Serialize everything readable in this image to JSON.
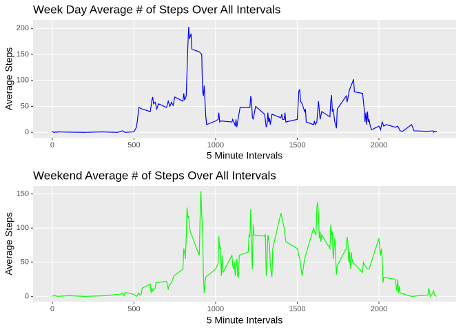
{
  "chart_data": [
    {
      "type": "line",
      "title": "Week Day Average # of Steps Over All Intervals",
      "x_label": "5 Minute Intervals",
      "y_label": "Average Steps",
      "color": "#0000ff",
      "x": [
        0,
        5,
        10,
        15,
        20,
        25,
        30,
        100,
        200,
        300,
        400,
        430,
        445,
        500,
        515,
        520,
        530,
        550,
        600,
        610,
        615,
        620,
        630,
        640,
        650,
        700,
        710,
        720,
        730,
        740,
        750,
        800,
        805,
        810,
        820,
        830,
        835,
        840,
        850,
        855,
        900,
        915,
        920,
        925,
        930,
        935,
        940,
        945,
        1000,
        1015,
        1020,
        1025,
        1030,
        1100,
        1105,
        1110,
        1115,
        1120,
        1125,
        1130,
        1140,
        1150,
        1200,
        1210,
        1215,
        1220,
        1225,
        1230,
        1245,
        1300,
        1310,
        1315,
        1320,
        1325,
        1330,
        1335,
        1340,
        1345,
        1400,
        1405,
        1410,
        1420,
        1425,
        1430,
        1500,
        1510,
        1515,
        1520,
        1530,
        1545,
        1550,
        1555,
        1600,
        1605,
        1610,
        1620,
        1630,
        1640,
        1650,
        1700,
        1705,
        1710,
        1715,
        1720,
        1730,
        1735,
        1740,
        1745,
        1800,
        1805,
        1820,
        1845,
        1850,
        1900,
        1905,
        1910,
        1915,
        1920,
        1925,
        1930,
        1935,
        1940,
        1945,
        1955,
        2000,
        2010,
        2020,
        2030,
        2045,
        2100,
        2115,
        2130,
        2145,
        2200,
        2215,
        2300,
        2330,
        2335,
        2340,
        2355
      ],
      "values": [
        2,
        0.5,
        0,
        0,
        1,
        0,
        1,
        0.5,
        0,
        1,
        0,
        3,
        0,
        1,
        10,
        20,
        48,
        45,
        40,
        62,
        68,
        55,
        58,
        45,
        55,
        48,
        60,
        50,
        58,
        52,
        68,
        60,
        75,
        62,
        70,
        165,
        203,
        180,
        190,
        160,
        155,
        150,
        80,
        70,
        90,
        60,
        30,
        15,
        22,
        25,
        38,
        20,
        22,
        20,
        25,
        20,
        18,
        12,
        25,
        10,
        30,
        48,
        48,
        48,
        70,
        60,
        30,
        25,
        50,
        35,
        10,
        15,
        38,
        20,
        28,
        15,
        25,
        35,
        28,
        35,
        25,
        25,
        38,
        20,
        25,
        80,
        82,
        60,
        55,
        40,
        45,
        20,
        15,
        22,
        15,
        20,
        60,
        25,
        40,
        30,
        60,
        72,
        40,
        45,
        20,
        15,
        8,
        45,
        70,
        58,
        82,
        102,
        78,
        75,
        60,
        45,
        20,
        38,
        15,
        40,
        20,
        25,
        15,
        5,
        12,
        5,
        20,
        12,
        15,
        10,
        12,
        3,
        2,
        15,
        3,
        2,
        3,
        0,
        2,
        1
      ],
      "xlim": [
        -117.75,
        2472.75
      ],
      "xticks": [
        0,
        500,
        1000,
        1500,
        2000
      ],
      "ylim": [
        -10.3,
        216.3
      ],
      "yticks": [
        0,
        50,
        100,
        150,
        200
      ],
      "grid": true
    },
    {
      "type": "line",
      "title": "Weekend Average # of Steps Over All Intervals",
      "x_label": "5 Minute Intervals",
      "y_label": "Average Steps",
      "color": "#00ff00",
      "x": [
        0,
        15,
        30,
        100,
        200,
        330,
        400,
        410,
        430,
        440,
        445,
        500,
        515,
        530,
        535,
        545,
        550,
        600,
        605,
        610,
        615,
        630,
        635,
        700,
        710,
        715,
        730,
        745,
        800,
        805,
        810,
        815,
        820,
        825,
        830,
        835,
        840,
        845,
        900,
        905,
        910,
        915,
        920,
        925,
        930,
        935,
        940,
        1000,
        1015,
        1020,
        1025,
        1030,
        1035,
        1040,
        1045,
        1100,
        1105,
        1110,
        1115,
        1120,
        1130,
        1135,
        1140,
        1145,
        1200,
        1205,
        1210,
        1215,
        1220,
        1225,
        1230,
        1235,
        1300,
        1305,
        1310,
        1315,
        1320,
        1330,
        1335,
        1345,
        1350,
        1400,
        1420,
        1430,
        1500,
        1515,
        1530,
        1545,
        1600,
        1605,
        1615,
        1620,
        1625,
        1630,
        1635,
        1640,
        1645,
        1650,
        1700,
        1705,
        1710,
        1715,
        1720,
        1730,
        1740,
        1745,
        1800,
        1805,
        1810,
        1815,
        1820,
        1825,
        1830,
        1835,
        1840,
        1900,
        1905,
        1915,
        1930,
        1940,
        2000,
        2005,
        2010,
        2015,
        2020,
        2025,
        2030,
        2100,
        2110,
        2115,
        2120,
        2125,
        2130,
        2200,
        2300,
        2305,
        2315,
        2330,
        2335,
        2340,
        2355
      ],
      "values": [
        0,
        2,
        0,
        1,
        0,
        1,
        3,
        2,
        5,
        1,
        6,
        3,
        0,
        5,
        2,
        3,
        12,
        18,
        5,
        12,
        8,
        12,
        20,
        22,
        10,
        16,
        20,
        30,
        40,
        70,
        65,
        55,
        85,
        130,
        115,
        118,
        100,
        95,
        60,
        115,
        154,
        120,
        100,
        35,
        5,
        20,
        28,
        40,
        48,
        88,
        70,
        72,
        30,
        60,
        35,
        60,
        45,
        40,
        50,
        30,
        55,
        30,
        28,
        60,
        65,
        90,
        88,
        128,
        70,
        40,
        105,
        90,
        88,
        90,
        30,
        50,
        90,
        75,
        45,
        28,
        70,
        122,
        100,
        80,
        70,
        55,
        30,
        55,
        100,
        95,
        90,
        130,
        138,
        120,
        85,
        95,
        80,
        90,
        70,
        105,
        90,
        95,
        55,
        85,
        32,
        45,
        70,
        87,
        80,
        50,
        65,
        40,
        65,
        55,
        50,
        35,
        50,
        45,
        40,
        40,
        85,
        70,
        60,
        70,
        55,
        20,
        28,
        25,
        8,
        25,
        5,
        15,
        5,
        0,
        2,
        12,
        0,
        5,
        8,
        2,
        0
      ],
      "xlim": [
        -117.75,
        2472.75
      ],
      "xticks": [
        0,
        500,
        1000,
        1500,
        2000
      ],
      "ylim": [
        -7.7,
        161.7
      ],
      "yticks": [
        0,
        50,
        100,
        150
      ],
      "grid": true
    }
  ]
}
